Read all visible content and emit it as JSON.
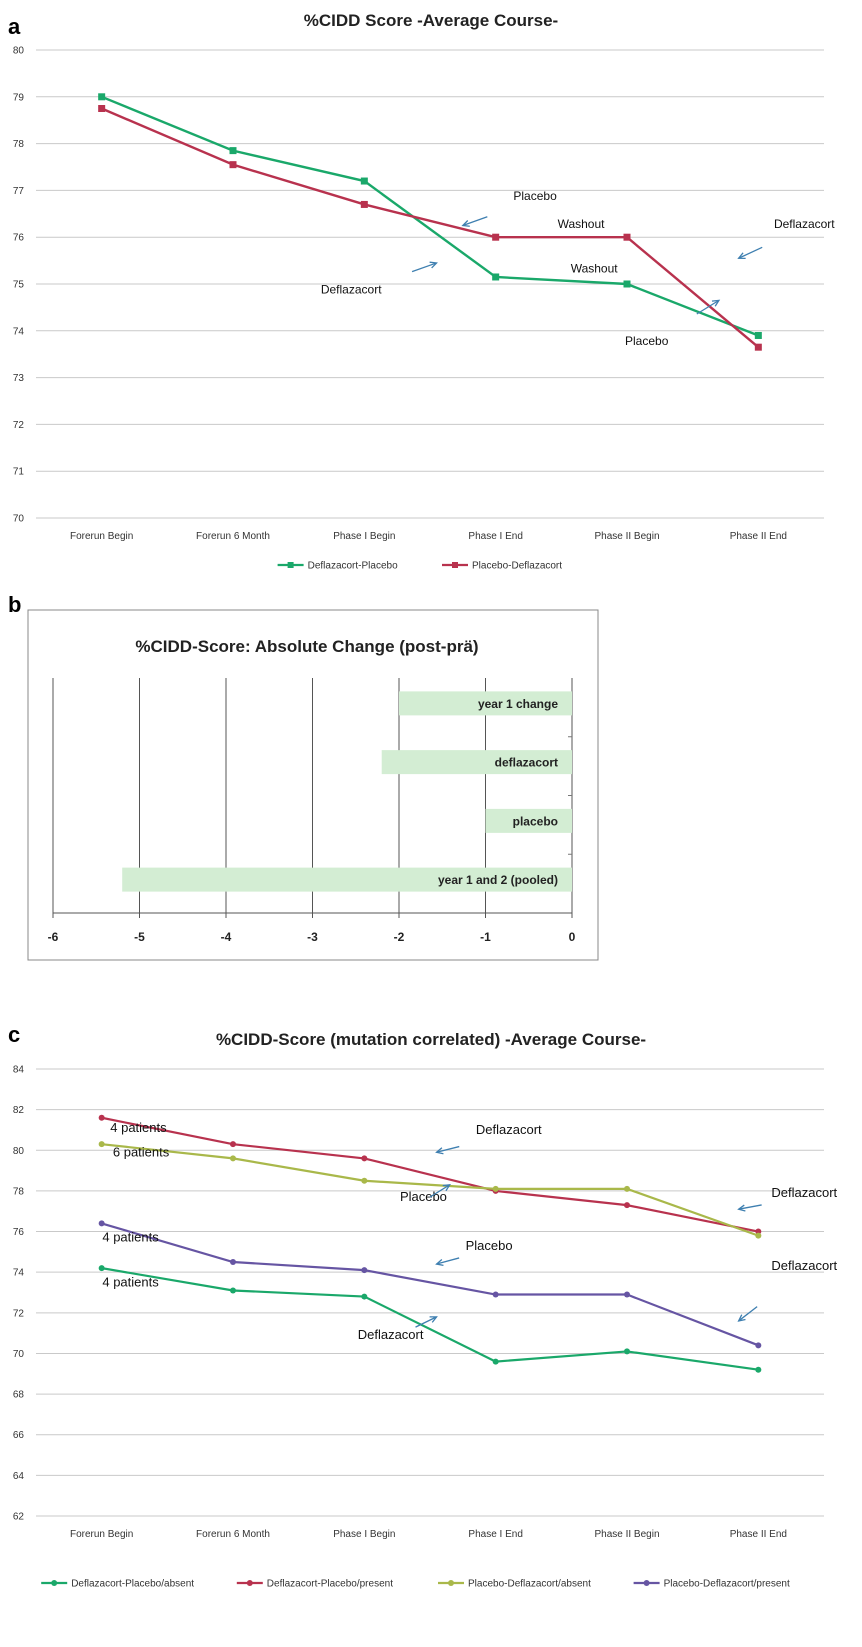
{
  "chart_data": [
    {
      "panel": "a",
      "type": "line",
      "title": "%CIDD Score  -Average Course-",
      "categories": [
        "Forerun Begin",
        "Forerun 6 Month",
        "Phase I Begin",
        "Phase I End",
        "Phase II Begin",
        "Phase II  End"
      ],
      "ylim": [
        70,
        80
      ],
      "yticks": [
        70,
        71,
        72,
        73,
        74,
        75,
        76,
        77,
        78,
        79,
        80
      ],
      "grid": true,
      "legend_position": "bottom",
      "series": [
        {
          "name": "Deflazacort-Placebo",
          "color": "#1aa86a",
          "values": [
            79.0,
            77.85,
            77.2,
            75.15,
            75.0,
            73.9
          ]
        },
        {
          "name": "Placebo-Deflazacort",
          "color": "#b8324e",
          "values": [
            78.75,
            77.55,
            76.7,
            76.0,
            76.0,
            73.65
          ]
        }
      ],
      "annotations": [
        {
          "text": "Placebo",
          "cat": 3.3,
          "y": 76.8,
          "arrow_to": [
            2.75,
            76.25
          ]
        },
        {
          "text": "Washout",
          "cat": 3.65,
          "y": 76.2
        },
        {
          "text": "Deflazacort",
          "cat": 5.35,
          "y": 76.2,
          "arrow_to": [
            4.85,
            75.55
          ]
        },
        {
          "text": "Deflazacort",
          "cat": 1.9,
          "y": 74.8,
          "arrow_to": [
            2.55,
            75.45
          ]
        },
        {
          "text": "Washout",
          "cat": 3.75,
          "y": 75.25
        },
        {
          "text": "Placebo",
          "cat": 4.15,
          "y": 73.7,
          "arrow_to": [
            4.7,
            74.65
          ]
        }
      ]
    },
    {
      "panel": "b",
      "type": "bar",
      "orientation": "horizontal",
      "title": "%CIDD-Score: Absolute Change (post-prä)",
      "xlim": [
        -6,
        0
      ],
      "xticks": [
        -6,
        -5,
        -4,
        -3,
        -2,
        -1,
        0
      ],
      "grid": true,
      "bar_color": "#d3edd3",
      "categories": [
        "year 1 change",
        "deflazacort",
        "placebo",
        "year 1 and 2 (pooled)"
      ],
      "values": [
        -2.0,
        -2.2,
        -1.0,
        -5.2
      ]
    },
    {
      "panel": "c",
      "type": "line",
      "title": "%CIDD-Score (mutation correlated)  -Average Course-",
      "categories": [
        "Forerun Begin",
        "Forerun 6 Month",
        "Phase I Begin",
        "Phase I End",
        "Phase II Begin",
        "Phase II  End"
      ],
      "ylim": [
        62,
        84
      ],
      "yticks": [
        62,
        64,
        66,
        68,
        70,
        72,
        74,
        76,
        78,
        80,
        82,
        84
      ],
      "grid": true,
      "legend_position": "bottom",
      "series": [
        {
          "name": "Deflazacort-Placebo/absent",
          "color": "#1aa86a",
          "values": [
            74.2,
            73.1,
            72.8,
            69.6,
            70.1,
            69.2
          ]
        },
        {
          "name": "Deflazacort-Placebo/present",
          "color": "#b8324e",
          "values": [
            81.6,
            80.3,
            79.6,
            78.0,
            77.3,
            76.0
          ]
        },
        {
          "name": "Placebo-Deflazacort/absent",
          "color": "#a9b84a",
          "values": [
            80.3,
            79.6,
            78.5,
            78.1,
            78.1,
            75.8
          ]
        },
        {
          "name": "Placebo-Deflazacort/present",
          "color": "#6655a3",
          "values": [
            76.4,
            74.5,
            74.1,
            72.9,
            72.9,
            70.4
          ]
        }
      ],
      "annotations": [
        {
          "text": "4 patients",
          "cat": 0.28,
          "y": 80.9
        },
        {
          "text": "6 patients",
          "cat": 0.3,
          "y": 79.7
        },
        {
          "text": "4 patients",
          "cat": 0.22,
          "y": 75.5
        },
        {
          "text": "4 patients",
          "cat": 0.22,
          "y": 73.3
        },
        {
          "text": "Deflazacort",
          "cat": 3.1,
          "y": 80.8,
          "arrow_to": [
            2.55,
            79.9
          ]
        },
        {
          "text": "Placebo",
          "cat": 2.45,
          "y": 77.5,
          "arrow_to": [
            2.65,
            78.3
          ]
        },
        {
          "text": "Deflazacort",
          "cat": 5.35,
          "y": 77.7,
          "arrow_to": [
            4.85,
            77.1
          ]
        },
        {
          "text": "Placebo",
          "cat": 2.95,
          "y": 75.1,
          "arrow_to": [
            2.55,
            74.4
          ]
        },
        {
          "text": "Deflazacort",
          "cat": 5.35,
          "y": 74.1,
          "arrow_to": [
            4.85,
            71.6
          ]
        },
        {
          "text": "Deflazacort",
          "cat": 2.2,
          "y": 70.7,
          "arrow_to": [
            2.55,
            71.8
          ]
        }
      ]
    }
  ],
  "panels": {
    "a": "a",
    "b": "b",
    "c": "c"
  }
}
